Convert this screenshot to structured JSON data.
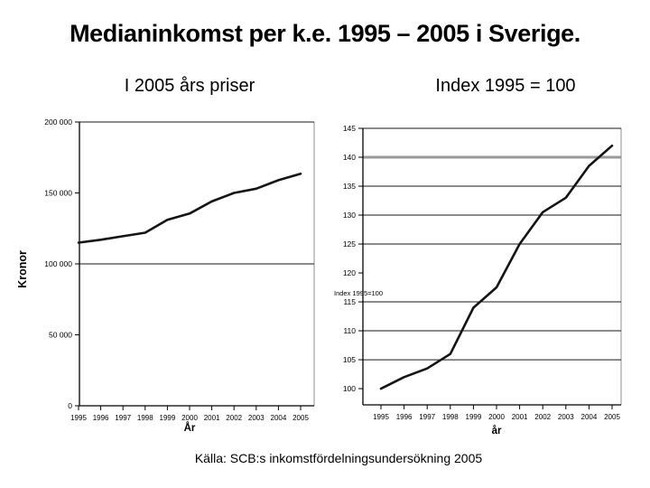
{
  "slide": {
    "title": "Medianinkomst per k.e. 1995 – 2005 i Sverige.",
    "subtitle_left": "I 2005 års priser",
    "subtitle_right": "Index 1995 = 100",
    "caption": "Källa: SCB:s inkomstfördelningsundersökning 2005"
  },
  "colors": {
    "text": "#000000",
    "series_line": "#141414",
    "grid_line": "#1a1a1a",
    "frame_line": "#8f8f8f",
    "reference_line": "#9a9a9a"
  },
  "chart_data": [
    {
      "type": "line",
      "title": "I 2005 års priser",
      "xlabel": "År",
      "ylabel": "Kronor",
      "x": [
        1995,
        1996,
        1997,
        1998,
        1999,
        2000,
        2001,
        2002,
        2003,
        2004,
        2005
      ],
      "values": [
        115000,
        117000,
        119500,
        122000,
        131000,
        135500,
        144000,
        150000,
        153000,
        159000,
        163500
      ],
      "ylim": [
        0,
        200000
      ],
      "yticks": [
        0,
        50000,
        100000,
        150000,
        200000
      ],
      "ytick_labels": [
        "0",
        "50 000",
        "100 000",
        "150 000",
        "200 000"
      ],
      "grid_y": [
        100000,
        200000
      ],
      "legend": "none"
    },
    {
      "type": "line",
      "title": "Index 1995 = 100",
      "xlabel": "år",
      "ylabel": "",
      "annotation": "Index 1995=100",
      "x": [
        1995,
        1996,
        1997,
        1998,
        1999,
        2000,
        2001,
        2002,
        2003,
        2004,
        2005
      ],
      "values": [
        100,
        102,
        103.5,
        106,
        114,
        117.5,
        125,
        130.5,
        133,
        138.5,
        142
      ],
      "ylim": [
        97.2,
        145
      ],
      "yticks": [
        100,
        105,
        110,
        115,
        120,
        125,
        130,
        135,
        140,
        145
      ],
      "ytick_labels": [
        "100",
        "105",
        "110",
        "115",
        "120",
        "125",
        "130",
        "135",
        "140",
        "145"
      ],
      "grid_y": [
        105,
        110,
        115,
        125,
        130,
        135,
        145
      ],
      "grid_y_thick": 140,
      "legend": "none"
    }
  ]
}
